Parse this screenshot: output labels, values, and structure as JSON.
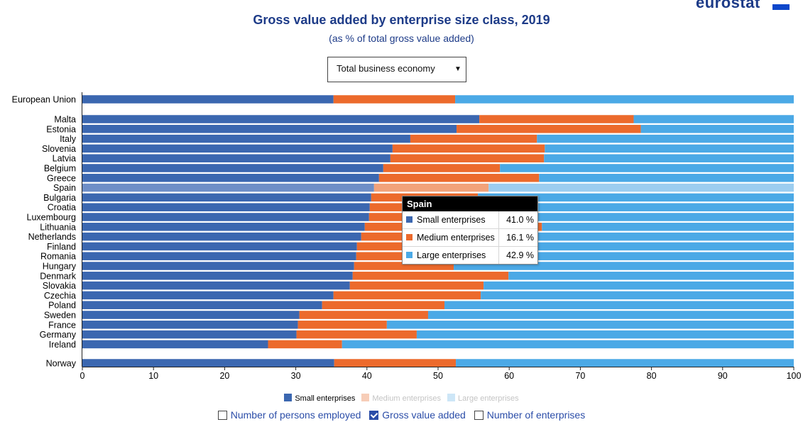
{
  "logo": "eurostat",
  "filter": {
    "selected": "Total business economy"
  },
  "tooltip": {
    "country": "Spain",
    "rows": [
      {
        "label": "Small enterprises",
        "value": "41.0 %"
      },
      {
        "label": "Medium enterprises",
        "value": "16.1 %"
      },
      {
        "label": "Large enterprises",
        "value": "42.9 %"
      }
    ]
  },
  "legend": [
    {
      "label": "Small enterprises",
      "active": true
    },
    {
      "label": "Medium enterprises",
      "active": false
    },
    {
      "label": "Large enterprises",
      "active": false
    }
  ],
  "options": [
    {
      "label": "Number of persons employed",
      "checked": false
    },
    {
      "label": "Gross value added",
      "checked": true
    },
    {
      "label": "Number of enterprises",
      "checked": false
    }
  ],
  "colors": {
    "small": "#3b67b0",
    "medium": "#ec6a2c",
    "large": "#4ba9e6",
    "title": "#1d3b88"
  },
  "chart_data": {
    "type": "bar",
    "orientation": "horizontal",
    "stacked": true,
    "title": "Gross value added by enterprise size class, 2019",
    "subtitle": "(as % of total gross value added)",
    "xlim": [
      0,
      100
    ],
    "xticks": [
      0,
      10,
      20,
      30,
      40,
      50,
      60,
      70,
      80,
      90,
      100
    ],
    "categories": [
      "European Union",
      "Malta",
      "Estonia",
      "Italy",
      "Slovenia",
      "Latvia",
      "Belgium",
      "Greece",
      "Spain",
      "Bulgaria",
      "Croatia",
      "Luxembourg",
      "Lithuania",
      "Netherlands",
      "Finland",
      "Romania",
      "Hungary",
      "Denmark",
      "Slovakia",
      "Czechia",
      "Poland",
      "Sweden",
      "France",
      "Germany",
      "Ireland",
      "Norway"
    ],
    "highlighted": "Spain",
    "series": [
      {
        "name": "Small enterprises",
        "values": [
          35.3,
          55.8,
          52.6,
          46.1,
          43.6,
          43.3,
          42.3,
          41.7,
          41.0,
          40.6,
          40.4,
          40.3,
          39.7,
          39.2,
          38.6,
          38.5,
          38.2,
          38.0,
          37.6,
          35.3,
          33.7,
          30.5,
          30.3,
          30.1,
          26.1,
          35.4
        ]
      },
      {
        "name": "Medium enterprises",
        "values": [
          17.1,
          21.7,
          25.9,
          17.8,
          21.4,
          21.6,
          16.4,
          22.5,
          16.1,
          15.0,
          15.2,
          14.8,
          24.9,
          17.0,
          16.5,
          14.5,
          14.0,
          21.9,
          18.8,
          20.7,
          17.2,
          18.1,
          12.5,
          16.9,
          10.4,
          17.1
        ]
      },
      {
        "name": "Large enterprises",
        "values": [
          47.6,
          22.5,
          21.5,
          36.1,
          35.0,
          35.1,
          41.3,
          35.8,
          42.9,
          44.4,
          44.4,
          44.9,
          35.4,
          43.8,
          44.9,
          47.0,
          47.8,
          40.1,
          43.6,
          44.0,
          49.1,
          51.4,
          57.2,
          53.0,
          63.5,
          47.5
        ]
      }
    ]
  }
}
